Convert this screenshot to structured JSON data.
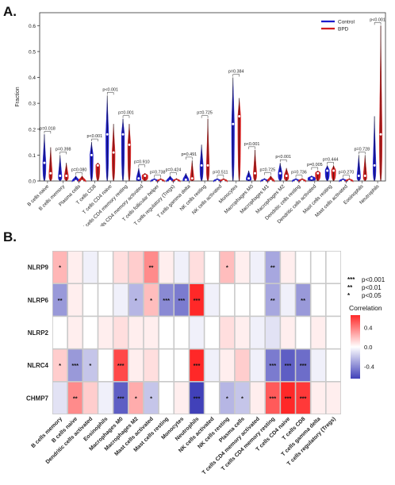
{
  "panels": {
    "a_letter": "A.",
    "b_letter": "B."
  },
  "chart_data": [
    {
      "type": "violin",
      "ylabel": "Fraction",
      "ylim": [
        0,
        0.65
      ],
      "yticks": [
        "0.0",
        "0.1",
        "0.2",
        "0.3",
        "0.4",
        "0.5",
        "0.6"
      ],
      "legend": {
        "position": "top-right",
        "entries": [
          {
            "name": "Control",
            "color": "#1c1ccc"
          },
          {
            "name": "BPD",
            "color": "#d11e1e"
          }
        ]
      },
      "categories": [
        "B cells naive",
        "B cells memory",
        "Plasma cells",
        "T cells CD8",
        "T cells CD4 naive",
        "T cells CD4 memory resting",
        "T cells CD4 memory activated",
        "T cells follicular helper",
        "T cells regulatory (Tregs)",
        "T cells gamma delta",
        "NK cells resting",
        "NK cells activated",
        "Monocytes",
        "Macrophages M0",
        "Macrophages M1",
        "Macrophages M2",
        "Dendritic cells resting",
        "Dendritic cells activated",
        "Mast cells resting",
        "Mast cells activated",
        "Eosinophils",
        "Neutrophils"
      ],
      "p_values": [
        "p=0.018",
        "p=0.398",
        "p=0.080",
        "p<0.001",
        "p<0.001",
        "p=0.001",
        "p=0.910",
        "p=0.738",
        "p=0.424",
        "p=0.491",
        "p=0.725",
        "p=0.511",
        "p=0.384",
        "p<0.001",
        "p=0.725",
        "p<0.001",
        "p=0.736",
        "p=0.005",
        "p=0.444",
        "p=0.270",
        "p=0.728",
        "p<0.001"
      ],
      "series": [
        {
          "name": "Control",
          "median": [
            0.07,
            0.02,
            0.0,
            0.1,
            0.18,
            0.18,
            0.01,
            0.0,
            0.0,
            0.005,
            0.06,
            0.0,
            0.22,
            0.01,
            0.0,
            0.03,
            0.0,
            0.01,
            0.04,
            0.0,
            0.02,
            0.06
          ],
          "max": [
            0.18,
            0.1,
            0.02,
            0.15,
            0.33,
            0.24,
            0.05,
            0.01,
            0.02,
            0.03,
            0.14,
            0.01,
            0.4,
            0.04,
            0.01,
            0.07,
            0.01,
            0.02,
            0.06,
            0.01,
            0.1,
            0.25
          ]
        },
        {
          "name": "BPD",
          "median": [
            0.03,
            0.02,
            0.0,
            0.06,
            0.11,
            0.14,
            0.02,
            0.0,
            0.0,
            0.01,
            0.06,
            0.0,
            0.25,
            0.03,
            0.0,
            0.02,
            0.0,
            0.03,
            0.04,
            0.0,
            0.02,
            0.18
          ],
          "max": [
            0.13,
            0.07,
            0.02,
            0.07,
            0.22,
            0.22,
            0.03,
            0.01,
            0.01,
            0.08,
            0.24,
            0.01,
            0.32,
            0.12,
            0.02,
            0.05,
            0.01,
            0.04,
            0.06,
            0.01,
            0.1,
            0.6
          ]
        }
      ]
    },
    {
      "type": "heatmap",
      "rows": [
        "NLRP9",
        "NLRP6",
        "NLRP2",
        "NLRC4",
        "CHMP7"
      ],
      "columns": [
        "B cells memory",
        "B cells naive",
        "Dendritic cells activated",
        "Eosinophils",
        "Macrophages M0",
        "Macrophages M2",
        "Mast cells activated",
        "Mast cells resting",
        "Monocytes",
        "Neutrophils",
        "NK cells activated",
        "NK cells resting",
        "Plasma cells",
        "T cells CD4 memory activated",
        "T cells CD4 memory resting",
        "T cells CD4 naive",
        "T cells CD8",
        "T cells gamma delta",
        "T cells regulatory (Tregs)"
      ],
      "values": [
        [
          0.22,
          0.05,
          -0.05,
          0.0,
          0.1,
          0.15,
          0.35,
          0.05,
          -0.05,
          0.1,
          0.0,
          0.2,
          0.05,
          -0.05,
          -0.3,
          0.05,
          0.0,
          0.0,
          0.0
        ],
        [
          -0.35,
          0.05,
          0.0,
          0.0,
          -0.05,
          -0.25,
          0.2,
          -0.4,
          -0.45,
          0.65,
          -0.05,
          0.0,
          0.0,
          0.0,
          -0.3,
          -0.05,
          -0.35,
          0.0,
          0.0
        ],
        [
          0.0,
          0.05,
          0.0,
          0.05,
          0.1,
          0.05,
          0.05,
          0.0,
          0.0,
          -0.05,
          0.0,
          0.1,
          0.05,
          -0.05,
          -0.1,
          0.05,
          0.0,
          0.05,
          0.0
        ],
        [
          0.15,
          -0.35,
          -0.2,
          0.0,
          0.55,
          0.05,
          0.1,
          0.0,
          0.0,
          0.8,
          -0.05,
          0.05,
          0.15,
          -0.05,
          -0.45,
          -0.55,
          -0.5,
          -0.05,
          0.0
        ],
        [
          -0.1,
          0.35,
          0.15,
          -0.05,
          -0.55,
          0.25,
          -0.2,
          0.0,
          0.05,
          -0.7,
          0.0,
          -0.25,
          -0.2,
          0.05,
          0.5,
          0.7,
          0.6,
          0.05,
          0.05
        ]
      ],
      "significance": [
        [
          "*",
          "",
          "",
          "",
          "",
          "",
          "**",
          "",
          "",
          "",
          "",
          "*",
          "",
          "",
          "**",
          "",
          "",
          "",
          ""
        ],
        [
          "**",
          "",
          "",
          "",
          "",
          "*",
          "*",
          "***",
          "***",
          "***",
          "",
          "",
          "",
          "",
          "**",
          "",
          "**",
          "",
          ""
        ],
        [
          "",
          "",
          "",
          "",
          "",
          "",
          "",
          "",
          "",
          "",
          "",
          "",
          "",
          "",
          "",
          "",
          "",
          "",
          ""
        ],
        [
          "*",
          "***",
          "*",
          "",
          "***",
          "",
          "",
          "",
          "",
          "***",
          "",
          "",
          "",
          "",
          "***",
          "***",
          "***",
          "",
          ""
        ],
        [
          "",
          "**",
          "",
          "",
          "***",
          "*",
          "*",
          "",
          "",
          "***",
          "",
          "*",
          "*",
          "",
          "***",
          "***",
          "***",
          "",
          ""
        ]
      ],
      "sig_legend": [
        {
          "stars": "***",
          "label": "p<0.001"
        },
        {
          "stars": "**",
          "label": "p<0.01"
        },
        {
          "stars": "*",
          "label": "p<0.05"
        }
      ],
      "colorbar": {
        "title": "Correlation",
        "ticks": [
          "0.4",
          "0.0",
          "-0.4"
        ],
        "range": [
          -0.65,
          0.65
        ]
      }
    }
  ]
}
